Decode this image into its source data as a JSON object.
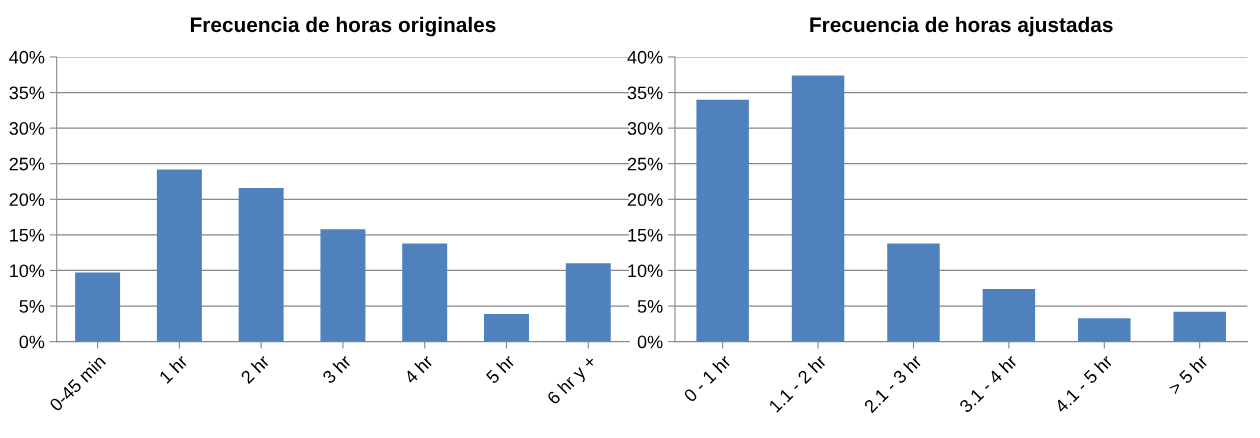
{
  "chart_data": [
    {
      "type": "bar",
      "title": "Frecuencia de horas originales",
      "categories": [
        "0-45 min",
        "1 hr",
        "2 hr",
        "3 hr",
        "4 hr",
        "5 hr",
        "6 hr y +"
      ],
      "values": [
        9.7,
        24.2,
        21.6,
        15.8,
        13.8,
        3.9,
        11.0
      ],
      "color": "#4f81bd",
      "ylim": [
        0,
        40
      ],
      "yticks": [
        {
          "value": 0,
          "label": "0%"
        },
        {
          "value": 5,
          "label": "5%"
        },
        {
          "value": 10,
          "label": "10%"
        },
        {
          "value": 15,
          "label": "15%"
        },
        {
          "value": 20,
          "label": "20%"
        },
        {
          "value": 25,
          "label": "25%"
        },
        {
          "value": 30,
          "label": "30%"
        },
        {
          "value": 35,
          "label": "35%"
        },
        {
          "value": 40,
          "label": "40%"
        }
      ],
      "grid": "y"
    },
    {
      "type": "bar",
      "title": "Frecuencia de horas ajustadas",
      "categories": [
        "0 - 1 hr",
        "1.1 - 2 hr",
        "2.1 - 3 hr",
        "3.1 - 4 hr",
        "4.1 - 5 hr",
        "> 5 hr"
      ],
      "values": [
        34.0,
        37.4,
        13.8,
        7.4,
        3.3,
        4.2
      ],
      "color": "#4f81bd",
      "ylim": [
        0,
        40
      ],
      "yticks": [
        {
          "value": 0,
          "label": "0%"
        },
        {
          "value": 5,
          "label": "5%"
        },
        {
          "value": 10,
          "label": "10%"
        },
        {
          "value": 15,
          "label": "15%"
        },
        {
          "value": 20,
          "label": "20%"
        },
        {
          "value": 25,
          "label": "25%"
        },
        {
          "value": 30,
          "label": "30%"
        },
        {
          "value": 35,
          "label": "35%"
        },
        {
          "value": 40,
          "label": "40%"
        }
      ],
      "grid": "y"
    }
  ]
}
